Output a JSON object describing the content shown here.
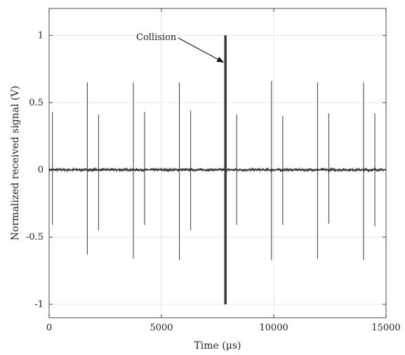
{
  "colors": {
    "signal": "#3a3a3a",
    "axis": "#222222",
    "grid": "#e6e6e6",
    "background": "#ffffff"
  },
  "chart_data": {
    "type": "line",
    "title": "",
    "xlabel": "Time (μs)",
    "ylabel": "Normalized received signal (V)",
    "xlim": [
      0,
      15000
    ],
    "ylim": [
      -1.1,
      1.2
    ],
    "xticks": [
      0,
      5000,
      10000,
      15000
    ],
    "xtick_labels": [
      "0",
      "5000",
      "10000",
      "15000"
    ],
    "yticks": [
      1,
      0.5,
      0,
      -0.5,
      -1
    ],
    "ytick_labels": [
      "1",
      "0.5",
      "0",
      "-0.5",
      "-1"
    ],
    "grid": true,
    "legend": "none",
    "baseline": 0,
    "noise_amplitude": 0.01,
    "series": [
      {
        "name": "",
        "pulses": [
          {
            "t": 150,
            "max": 0.43,
            "min": -0.41
          },
          {
            "t": 1700,
            "max": 0.65,
            "min": -0.63
          },
          {
            "t": 2200,
            "max": 0.41,
            "min": -0.45
          },
          {
            "t": 3750,
            "max": 0.65,
            "min": -0.66
          },
          {
            "t": 4250,
            "max": 0.43,
            "min": -0.41
          },
          {
            "t": 5800,
            "max": 0.65,
            "min": -0.67
          },
          {
            "t": 6300,
            "max": 0.44,
            "min": -0.45
          },
          {
            "t": 7850,
            "max": 1.0,
            "min": -1.0,
            "collision": true
          },
          {
            "t": 8350,
            "max": 0.41,
            "min": -0.41
          },
          {
            "t": 9900,
            "max": 0.66,
            "min": -0.67
          },
          {
            "t": 10400,
            "max": 0.4,
            "min": -0.41
          },
          {
            "t": 11950,
            "max": 0.65,
            "min": -0.66
          },
          {
            "t": 12450,
            "max": 0.42,
            "min": -0.4
          },
          {
            "t": 14000,
            "max": 0.65,
            "min": -0.67
          },
          {
            "t": 14500,
            "max": 0.42,
            "min": -0.42
          }
        ]
      }
    ],
    "annotations": [
      {
        "text": "Collision",
        "arrow_to": {
          "x": 7850,
          "y": 0.8
        }
      }
    ]
  }
}
